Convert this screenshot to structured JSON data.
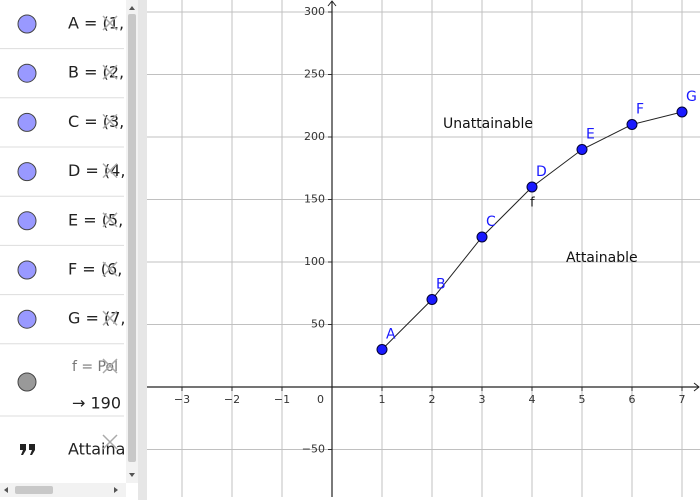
{
  "algebra_view": {
    "points": [
      "A = (1,",
      "B = (2,",
      "C = (3,",
      "D = (4,",
      "E = (5,",
      "F = (6,",
      "G = (7,"
    ],
    "function": {
      "definition": "f = Pol",
      "value": "→ 190"
    },
    "text_item": "Attaina"
  },
  "chart_data": {
    "type": "line",
    "x": [
      1,
      2,
      3,
      4,
      5,
      6,
      7
    ],
    "values": [
      30,
      70,
      120,
      160,
      190,
      210,
      220
    ],
    "point_labels": [
      "A",
      "B",
      "C",
      "D",
      "E",
      "F",
      "G"
    ],
    "color": "#1a1aff",
    "function_label": "f",
    "annotations": [
      "Unattainable",
      "Attainable"
    ],
    "xlim": [
      -3.7,
      7.36
    ],
    "ylim": [
      -88,
      309.6
    ],
    "xticks": [
      {
        "value": -3,
        "label": "−3"
      },
      {
        "value": -2,
        "label": "−2"
      },
      {
        "value": -1,
        "label": "−1"
      },
      0,
      1,
      2,
      3,
      4,
      5,
      6,
      7
    ],
    "yticks": [
      {
        "value": -50,
        "label": "−50"
      },
      50,
      100,
      150,
      200,
      250,
      300
    ],
    "grid": true
  }
}
